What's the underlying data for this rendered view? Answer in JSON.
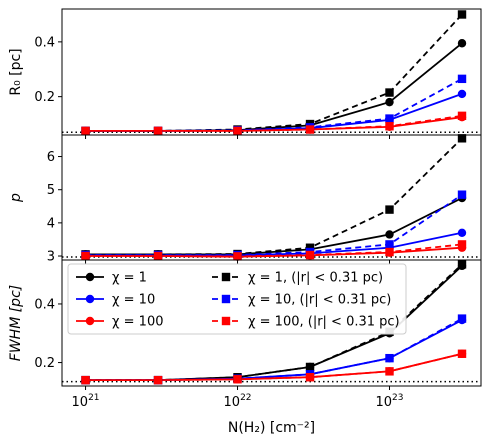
{
  "chart_data": {
    "type": "line",
    "x_scale": "log",
    "x": [
      1e+21,
      3e+21,
      1e+22,
      3e+22,
      1e+23,
      3e+23
    ],
    "xlim": [
      7e+20,
      4e+23
    ],
    "xlabel": "N(H₂) [cm⁻²]",
    "xtick_labels": [
      {
        "value": 1e+21,
        "base": "10",
        "exp": "21"
      },
      {
        "value": 1e+22,
        "base": "10",
        "exp": "22"
      },
      {
        "value": 1e+23,
        "base": "10",
        "exp": "23"
      }
    ],
    "colors": {
      "chi1": "#000000",
      "chi10": "#0000ff",
      "chi100": "#ff0000"
    },
    "legend": {
      "placement": "upper-left of bottom panel",
      "entries": [
        {
          "label": "χ = 1",
          "color": "#000000",
          "style": "solid",
          "marker": "circle"
        },
        {
          "label": "χ = 10",
          "color": "#0000ff",
          "style": "solid",
          "marker": "circle"
        },
        {
          "label": "χ = 100",
          "color": "#ff0000",
          "style": "solid",
          "marker": "circle"
        },
        {
          "label": "χ = 1, (|r| < 0.31 pc)",
          "color": "#000000",
          "style": "dashed",
          "marker": "square"
        },
        {
          "label": "χ = 10, (|r| < 0.31 pc)",
          "color": "#0000ff",
          "style": "dashed",
          "marker": "square"
        },
        {
          "label": "χ = 100, (|r| < 0.31 pc)",
          "color": "#ff0000",
          "style": "dashed",
          "marker": "square"
        }
      ]
    },
    "panels": [
      {
        "name": "R0",
        "ylabel": "R₀ [pc]",
        "ylim": [
          0.06,
          0.52
        ],
        "yticks": [
          0.2,
          0.4
        ],
        "ytick_labels": [
          "0.2",
          "0.4"
        ],
        "reference_line": 0.07,
        "series": [
          {
            "group": "chi1",
            "style": "solid",
            "marker": "circle",
            "values": [
              0.075,
              0.075,
              0.078,
              0.095,
              0.18,
              0.395
            ]
          },
          {
            "group": "chi10",
            "style": "solid",
            "marker": "circle",
            "values": [
              0.075,
              0.075,
              0.076,
              0.085,
              0.115,
              0.21
            ]
          },
          {
            "group": "chi100",
            "style": "solid",
            "marker": "circle",
            "values": [
              0.075,
              0.075,
              0.075,
              0.08,
              0.09,
              0.125
            ]
          },
          {
            "group": "chi1",
            "style": "dashed",
            "marker": "square",
            "values": [
              0.075,
              0.075,
              0.08,
              0.1,
              0.215,
              0.5
            ]
          },
          {
            "group": "chi10",
            "style": "dashed",
            "marker": "square",
            "values": [
              0.075,
              0.075,
              0.077,
              0.088,
              0.12,
              0.265
            ]
          },
          {
            "group": "chi100",
            "style": "dashed",
            "marker": "square",
            "values": [
              0.075,
              0.075,
              0.075,
              0.08,
              0.092,
              0.13
            ]
          }
        ]
      },
      {
        "name": "p",
        "ylabel": "p",
        "ylim": [
          2.88,
          6.65
        ],
        "yticks": [
          3,
          4,
          5,
          6
        ],
        "ytick_labels": [
          "3",
          "4",
          "5",
          "6"
        ],
        "reference_line": 2.97,
        "series": [
          {
            "group": "chi1",
            "style": "solid",
            "marker": "circle",
            "values": [
              3.05,
              3.05,
              3.05,
              3.2,
              3.65,
              4.75
            ]
          },
          {
            "group": "chi10",
            "style": "solid",
            "marker": "circle",
            "values": [
              3.02,
              3.02,
              3.02,
              3.08,
              3.25,
              3.7
            ]
          },
          {
            "group": "chi100",
            "style": "solid",
            "marker": "circle",
            "values": [
              3.0,
              3.0,
              2.98,
              3.02,
              3.1,
              3.25
            ]
          },
          {
            "group": "chi1",
            "style": "dashed",
            "marker": "square",
            "values": [
              3.05,
              3.05,
              3.06,
              3.25,
              4.4,
              6.55
            ]
          },
          {
            "group": "chi10",
            "style": "dashed",
            "marker": "square",
            "values": [
              3.03,
              3.03,
              3.03,
              3.12,
              3.35,
              4.85
            ]
          },
          {
            "group": "chi100",
            "style": "dashed",
            "marker": "square",
            "values": [
              3.0,
              3.0,
              2.99,
              3.03,
              3.12,
              3.35
            ]
          }
        ]
      },
      {
        "name": "FWHM",
        "ylabel": "FWHM [pc]",
        "ylim": [
          0.12,
          0.55
        ],
        "yticks": [
          0.2,
          0.4
        ],
        "ytick_labels": [
          "0.2",
          "0.4"
        ],
        "reference_line": 0.135,
        "series": [
          {
            "group": "chi1",
            "style": "solid",
            "marker": "circle",
            "values": [
              0.14,
              0.14,
              0.15,
              0.185,
              0.3,
              0.53
            ]
          },
          {
            "group": "chi10",
            "style": "solid",
            "marker": "circle",
            "values": [
              0.14,
              0.14,
              0.145,
              0.16,
              0.215,
              0.345
            ]
          },
          {
            "group": "chi100",
            "style": "solid",
            "marker": "circle",
            "values": [
              0.14,
              0.14,
              0.143,
              0.15,
              0.17,
              0.23
            ]
          },
          {
            "group": "chi1",
            "style": "dashed",
            "marker": "square",
            "values": [
              0.14,
              0.14,
              0.15,
              0.185,
              0.305,
              0.535
            ]
          },
          {
            "group": "chi10",
            "style": "dashed",
            "marker": "square",
            "values": [
              0.14,
              0.14,
              0.145,
              0.16,
              0.215,
              0.35
            ]
          },
          {
            "group": "chi100",
            "style": "dashed",
            "marker": "square",
            "values": [
              0.14,
              0.14,
              0.143,
              0.15,
              0.17,
              0.23
            ]
          }
        ]
      }
    ]
  }
}
